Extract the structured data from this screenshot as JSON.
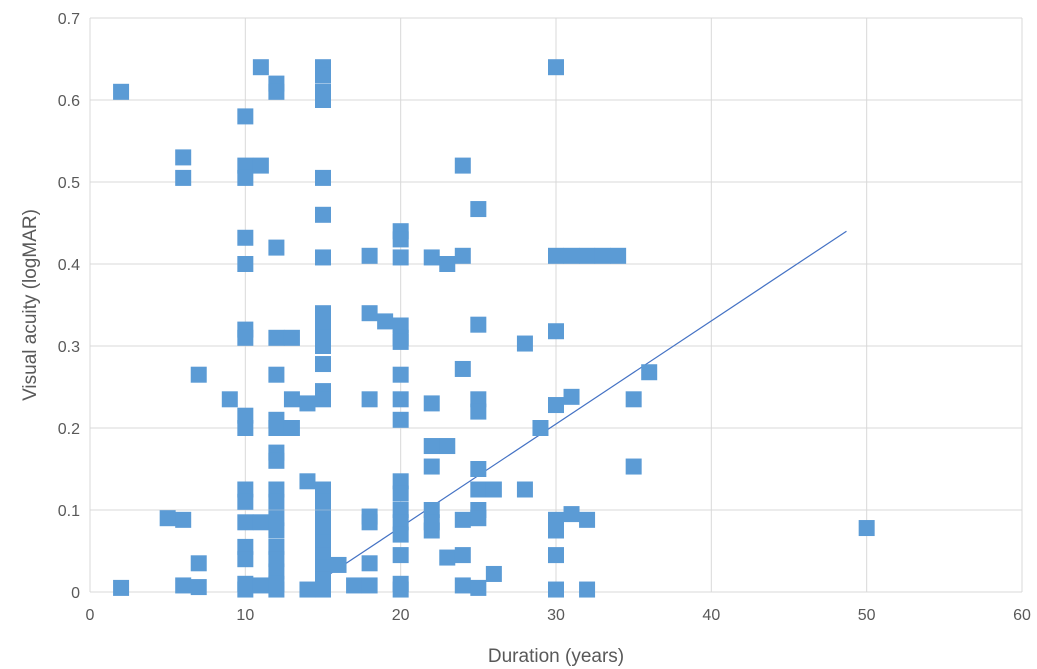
{
  "chart_data": {
    "type": "scatter",
    "title": "",
    "xlabel": "Duration (years)",
    "ylabel": "Visual acuity (logMAR)",
    "xlim": [
      0,
      60
    ],
    "ylim": [
      0,
      0.7
    ],
    "xticks": [
      0,
      10,
      20,
      30,
      40,
      50,
      60
    ],
    "xtick_labels": [
      "0",
      "10",
      "20",
      "30",
      "40",
      "50",
      "60"
    ],
    "yticks": [
      0,
      0.1,
      0.2,
      0.3,
      0.4,
      0.5,
      0.6,
      0.7
    ],
    "ytick_labels": [
      "0",
      "0.1",
      "0.2",
      "0.3",
      "0.4",
      "0.5",
      "0.6",
      "0.7"
    ],
    "grid": true,
    "legend": "none",
    "marker_color": "#5B9BD5",
    "trendline_color": "#4472C4",
    "series": [
      {
        "points": [
          [
            2,
            0.61
          ],
          [
            2,
            0.005
          ],
          [
            5,
            0.09
          ],
          [
            6,
            0.53
          ],
          [
            6,
            0.505
          ],
          [
            6,
            0.088
          ],
          [
            6,
            0.008
          ],
          [
            7,
            0.265
          ],
          [
            7,
            0.035
          ],
          [
            7,
            0.006
          ],
          [
            9,
            0.235
          ],
          [
            10,
            0.58
          ],
          [
            10,
            0.52
          ],
          [
            10,
            0.505
          ],
          [
            10,
            0.432
          ],
          [
            10,
            0.4
          ],
          [
            10,
            0.32
          ],
          [
            10,
            0.31
          ],
          [
            10,
            0.215
          ],
          [
            10,
            0.2
          ],
          [
            10,
            0.125
          ],
          [
            10,
            0.11
          ],
          [
            10,
            0.085
          ],
          [
            10,
            0.055
          ],
          [
            10,
            0.04
          ],
          [
            10,
            0.01
          ],
          [
            10,
            0.003
          ],
          [
            11,
            0.64
          ],
          [
            11,
            0.52
          ],
          [
            11,
            0.085
          ],
          [
            11,
            0.008
          ],
          [
            12,
            0.62
          ],
          [
            12,
            0.61
          ],
          [
            12,
            0.42
          ],
          [
            12,
            0.31
          ],
          [
            12,
            0.265
          ],
          [
            12,
            0.21
          ],
          [
            12,
            0.2
          ],
          [
            12,
            0.17
          ],
          [
            12,
            0.16
          ],
          [
            12,
            0.125
          ],
          [
            12,
            0.11
          ],
          [
            12,
            0.09
          ],
          [
            12,
            0.075
          ],
          [
            12,
            0.055
          ],
          [
            12,
            0.04
          ],
          [
            12,
            0.025
          ],
          [
            12,
            0.01
          ],
          [
            12,
            0.003
          ],
          [
            13,
            0.31
          ],
          [
            13,
            0.235
          ],
          [
            13,
            0.2
          ],
          [
            14,
            0.23
          ],
          [
            14,
            0.135
          ],
          [
            14,
            0.003
          ],
          [
            15,
            0.64
          ],
          [
            15,
            0.63
          ],
          [
            15,
            0.61
          ],
          [
            15,
            0.6
          ],
          [
            15,
            0.505
          ],
          [
            15,
            0.46
          ],
          [
            15,
            0.408
          ],
          [
            15,
            0.34
          ],
          [
            15,
            0.325
          ],
          [
            15,
            0.31
          ],
          [
            15,
            0.3
          ],
          [
            15,
            0.278
          ],
          [
            15,
            0.245
          ],
          [
            15,
            0.235
          ],
          [
            15,
            0.125
          ],
          [
            15,
            0.11
          ],
          [
            15,
            0.09
          ],
          [
            15,
            0.075
          ],
          [
            15,
            0.06
          ],
          [
            15,
            0.045
          ],
          [
            15,
            0.03
          ],
          [
            15,
            0.015
          ],
          [
            15,
            0.003
          ],
          [
            16,
            0.033
          ],
          [
            17,
            0.008
          ],
          [
            18,
            0.41
          ],
          [
            18,
            0.34
          ],
          [
            18,
            0.235
          ],
          [
            18,
            0.092
          ],
          [
            18,
            0.085
          ],
          [
            18,
            0.035
          ],
          [
            18,
            0.008
          ],
          [
            19,
            0.33
          ],
          [
            20,
            0.44
          ],
          [
            20,
            0.43
          ],
          [
            20,
            0.408
          ],
          [
            20,
            0.325
          ],
          [
            20,
            0.31
          ],
          [
            20,
            0.305
          ],
          [
            20,
            0.265
          ],
          [
            20,
            0.235
          ],
          [
            20,
            0.21
          ],
          [
            20,
            0.135
          ],
          [
            20,
            0.12
          ],
          [
            20,
            0.1
          ],
          [
            20,
            0.085
          ],
          [
            20,
            0.07
          ],
          [
            20,
            0.045
          ],
          [
            20,
            0.01
          ],
          [
            20,
            0.003
          ],
          [
            22,
            0.408
          ],
          [
            22,
            0.23
          ],
          [
            22,
            0.178
          ],
          [
            22,
            0.153
          ],
          [
            22,
            0.1
          ],
          [
            22,
            0.085
          ],
          [
            22,
            0.075
          ],
          [
            23,
            0.4
          ],
          [
            23,
            0.178
          ],
          [
            23,
            0.042
          ],
          [
            24,
            0.52
          ],
          [
            24,
            0.41
          ],
          [
            24,
            0.272
          ],
          [
            24,
            0.088
          ],
          [
            24,
            0.045
          ],
          [
            24,
            0.008
          ],
          [
            25,
            0.467
          ],
          [
            25,
            0.326
          ],
          [
            25,
            0.235
          ],
          [
            25,
            0.22
          ],
          [
            25,
            0.15
          ],
          [
            25,
            0.125
          ],
          [
            25,
            0.1
          ],
          [
            25,
            0.09
          ],
          [
            25,
            0.005
          ],
          [
            26,
            0.125
          ],
          [
            26,
            0.022
          ],
          [
            28,
            0.303
          ],
          [
            28,
            0.125
          ],
          [
            29,
            0.2
          ],
          [
            30,
            0.64
          ],
          [
            30,
            0.41
          ],
          [
            30,
            0.318
          ],
          [
            30,
            0.228
          ],
          [
            30,
            0.088
          ],
          [
            30,
            0.075
          ],
          [
            30,
            0.045
          ],
          [
            30,
            0.003
          ],
          [
            31,
            0.41
          ],
          [
            31,
            0.238
          ],
          [
            31,
            0.095
          ],
          [
            32,
            0.41
          ],
          [
            32,
            0.088
          ],
          [
            32,
            0.003
          ],
          [
            33,
            0.41
          ],
          [
            34,
            0.41
          ],
          [
            35,
            0.235
          ],
          [
            35,
            0.153
          ],
          [
            36,
            0.268
          ],
          [
            50,
            0.078
          ]
        ]
      }
    ],
    "trendline": {
      "x": [
        14.5,
        48.7
      ],
      "y": [
        0.01,
        0.44
      ]
    }
  }
}
